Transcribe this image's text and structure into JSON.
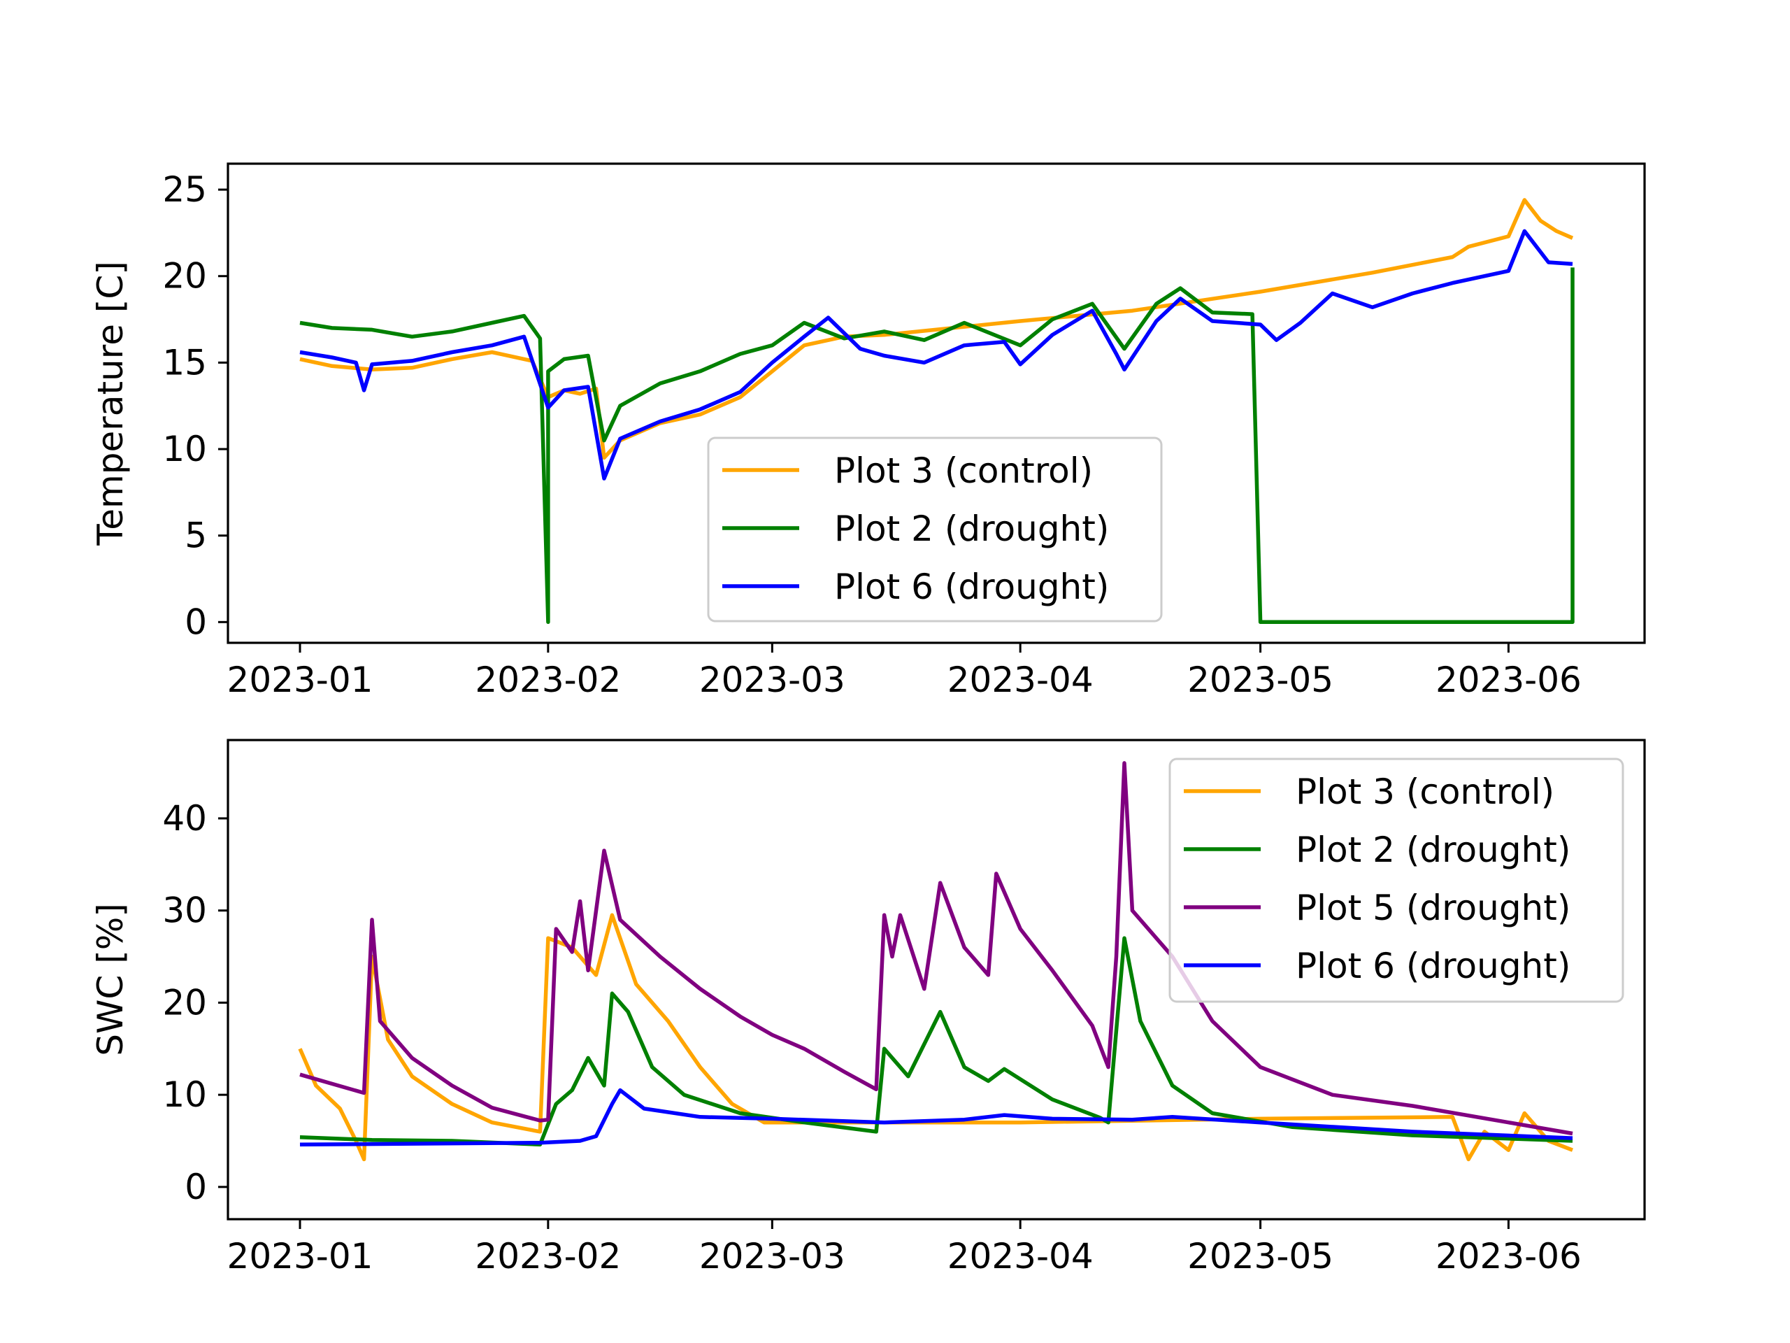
{
  "chart_data": [
    {
      "type": "line",
      "title": "",
      "xlabel": "",
      "ylabel": "Temperature [C]",
      "xlim": [
        "2022-12-23",
        "2023-06-18"
      ],
      "ylim": [
        -1.2,
        26.5
      ],
      "x_ticks": [
        "2023-01",
        "2023-02",
        "2023-03",
        "2023-04",
        "2023-05",
        "2023-06"
      ],
      "y_ticks": [
        "0",
        "5",
        "10",
        "15",
        "20",
        "25"
      ],
      "grid": false,
      "legend": "lower center",
      "series": [
        {
          "name": "Plot 3 (control)",
          "color": "#ffa500",
          "points": [
            [
              "2023-01-01",
              15.2
            ],
            [
              "2023-01-05",
              14.8
            ],
            [
              "2023-01-10",
              14.6
            ],
            [
              "2023-01-15",
              14.7
            ],
            [
              "2023-01-20",
              15.2
            ],
            [
              "2023-01-25",
              15.6
            ],
            [
              "2023-01-30",
              15.1
            ],
            [
              "2023-02-01",
              13.0
            ],
            [
              "2023-02-03",
              13.4
            ],
            [
              "2023-02-05",
              13.2
            ],
            [
              "2023-02-07",
              13.5
            ],
            [
              "2023-02-08",
              9.5
            ],
            [
              "2023-02-10",
              10.5
            ],
            [
              "2023-02-15",
              11.5
            ],
            [
              "2023-02-20",
              12.0
            ],
            [
              "2023-02-25",
              13.0
            ],
            [
              "2023-03-01",
              14.5
            ],
            [
              "2023-03-05",
              16.0
            ],
            [
              "2023-03-10",
              16.5
            ],
            [
              "2023-03-15",
              16.6
            ],
            [
              "2023-04-01",
              17.4
            ],
            [
              "2023-04-15",
              18.0
            ],
            [
              "2023-05-01",
              19.1
            ],
            [
              "2023-05-15",
              20.2
            ],
            [
              "2023-05-25",
              21.1
            ],
            [
              "2023-05-27",
              21.7
            ],
            [
              "2023-06-01",
              22.3
            ],
            [
              "2023-06-03",
              24.4
            ],
            [
              "2023-06-05",
              23.2
            ],
            [
              "2023-06-07",
              22.6
            ],
            [
              "2023-06-09",
              22.2
            ]
          ]
        },
        {
          "name": "Plot 2 (drought)",
          "color": "#008000",
          "points": [
            [
              "2023-01-01",
              17.3
            ],
            [
              "2023-01-05",
              17.0
            ],
            [
              "2023-01-10",
              16.9
            ],
            [
              "2023-01-15",
              16.5
            ],
            [
              "2023-01-20",
              16.8
            ],
            [
              "2023-01-25",
              17.3
            ],
            [
              "2023-01-29",
              17.7
            ],
            [
              "2023-01-31",
              16.4
            ],
            [
              "2023-02-01",
              0
            ],
            [
              "2023-02-01",
              14.5
            ],
            [
              "2023-02-03",
              15.2
            ],
            [
              "2023-02-06",
              15.4
            ],
            [
              "2023-02-08",
              10.5
            ],
            [
              "2023-02-10",
              12.5
            ],
            [
              "2023-02-15",
              13.8
            ],
            [
              "2023-02-20",
              14.5
            ],
            [
              "2023-02-25",
              15.5
            ],
            [
              "2023-03-01",
              16.0
            ],
            [
              "2023-03-05",
              17.3
            ],
            [
              "2023-03-10",
              16.4
            ],
            [
              "2023-03-15",
              16.8
            ],
            [
              "2023-03-20",
              16.3
            ],
            [
              "2023-03-25",
              17.3
            ],
            [
              "2023-04-01",
              16.0
            ],
            [
              "2023-04-05",
              17.5
            ],
            [
              "2023-04-10",
              18.4
            ],
            [
              "2023-04-14",
              15.8
            ],
            [
              "2023-04-18",
              18.4
            ],
            [
              "2023-04-21",
              19.3
            ],
            [
              "2023-04-25",
              17.9
            ],
            [
              "2023-04-30",
              17.8
            ],
            [
              "2023-05-01",
              0
            ],
            [
              "2023-06-09",
              0
            ],
            [
              "2023-06-09",
              20.5
            ]
          ]
        },
        {
          "name": "Plot 6 (drought)",
          "color": "#0000ff",
          "points": [
            [
              "2023-01-01",
              15.6
            ],
            [
              "2023-01-05",
              15.3
            ],
            [
              "2023-01-08",
              15.0
            ],
            [
              "2023-01-09",
              13.4
            ],
            [
              "2023-01-10",
              14.9
            ],
            [
              "2023-01-15",
              15.1
            ],
            [
              "2023-01-20",
              15.6
            ],
            [
              "2023-01-25",
              16.0
            ],
            [
              "2023-01-29",
              16.5
            ],
            [
              "2023-02-01",
              12.4
            ],
            [
              "2023-02-03",
              13.4
            ],
            [
              "2023-02-06",
              13.6
            ],
            [
              "2023-02-08",
              8.3
            ],
            [
              "2023-02-10",
              10.6
            ],
            [
              "2023-02-15",
              11.6
            ],
            [
              "2023-02-20",
              12.3
            ],
            [
              "2023-02-25",
              13.3
            ],
            [
              "2023-03-01",
              15.0
            ],
            [
              "2023-03-05",
              16.5
            ],
            [
              "2023-03-08",
              17.6
            ],
            [
              "2023-03-12",
              15.8
            ],
            [
              "2023-03-15",
              15.4
            ],
            [
              "2023-03-20",
              15.0
            ],
            [
              "2023-03-25",
              16.0
            ],
            [
              "2023-03-30",
              16.2
            ],
            [
              "2023-04-01",
              14.9
            ],
            [
              "2023-04-05",
              16.6
            ],
            [
              "2023-04-10",
              18.0
            ],
            [
              "2023-04-13",
              15.5
            ],
            [
              "2023-04-14",
              14.6
            ],
            [
              "2023-04-18",
              17.4
            ],
            [
              "2023-04-21",
              18.7
            ],
            [
              "2023-04-25",
              17.4
            ],
            [
              "2023-05-01",
              17.2
            ],
            [
              "2023-05-03",
              16.3
            ],
            [
              "2023-05-06",
              17.3
            ],
            [
              "2023-05-10",
              19.0
            ],
            [
              "2023-05-15",
              18.2
            ],
            [
              "2023-05-20",
              19.0
            ],
            [
              "2023-05-25",
              19.6
            ],
            [
              "2023-06-01",
              20.3
            ],
            [
              "2023-06-03",
              22.6
            ],
            [
              "2023-06-06",
              20.8
            ],
            [
              "2023-06-09",
              20.7
            ]
          ]
        }
      ]
    },
    {
      "type": "line",
      "title": "",
      "xlabel": "",
      "ylabel": "SWC [%]",
      "xlim": [
        "2022-12-23",
        "2023-06-18"
      ],
      "ylim": [
        -3.5,
        48.5
      ],
      "x_ticks": [
        "2023-01",
        "2023-02",
        "2023-03",
        "2023-04",
        "2023-05",
        "2023-06"
      ],
      "y_ticks": [
        "0",
        "10",
        "20",
        "30",
        "40"
      ],
      "grid": false,
      "legend": "upper right",
      "series": [
        {
          "name": "Plot 3 (control)",
          "color": "#ffa500",
          "points": [
            [
              "2023-01-01",
              15.0
            ],
            [
              "2023-01-03",
              11.0
            ],
            [
              "2023-01-06",
              8.5
            ],
            [
              "2023-01-08",
              5.0
            ],
            [
              "2023-01-09",
              3.0
            ],
            [
              "2023-01-10",
              25.0
            ],
            [
              "2023-01-12",
              16.0
            ],
            [
              "2023-01-15",
              12.0
            ],
            [
              "2023-01-20",
              9.0
            ],
            [
              "2023-01-25",
              7.0
            ],
            [
              "2023-01-31",
              6.0
            ],
            [
              "2023-02-01",
              27.0
            ],
            [
              "2023-02-04",
              26.0
            ],
            [
              "2023-02-07",
              23.0
            ],
            [
              "2023-02-09",
              29.5
            ],
            [
              "2023-02-12",
              22.0
            ],
            [
              "2023-02-16",
              18.0
            ],
            [
              "2023-02-20",
              13.0
            ],
            [
              "2023-02-24",
              9.0
            ],
            [
              "2023-02-28",
              7.0
            ],
            [
              "2023-03-05",
              7.0
            ],
            [
              "2023-04-01",
              7.0
            ],
            [
              "2023-05-01",
              7.4
            ],
            [
              "2023-05-25",
              7.6
            ],
            [
              "2023-05-27",
              3.0
            ],
            [
              "2023-05-29",
              6.0
            ],
            [
              "2023-06-01",
              4.0
            ],
            [
              "2023-06-03",
              8.0
            ],
            [
              "2023-06-06",
              5.0
            ],
            [
              "2023-06-09",
              4.0
            ]
          ]
        },
        {
          "name": "Plot 2 (drought)",
          "color": "#008000",
          "points": [
            [
              "2023-01-01",
              5.4
            ],
            [
              "2023-01-10",
              5.1
            ],
            [
              "2023-01-20",
              5.0
            ],
            [
              "2023-01-31",
              4.6
            ],
            [
              "2023-02-02",
              9.0
            ],
            [
              "2023-02-04",
              10.5
            ],
            [
              "2023-02-06",
              14.0
            ],
            [
              "2023-02-08",
              11.0
            ],
            [
              "2023-02-09",
              21.0
            ],
            [
              "2023-02-11",
              19.0
            ],
            [
              "2023-02-14",
              13.0
            ],
            [
              "2023-02-18",
              10.0
            ],
            [
              "2023-02-25",
              8.0
            ],
            [
              "2023-03-05",
              7.0
            ],
            [
              "2023-03-14",
              6.0
            ],
            [
              "2023-03-15",
              15.0
            ],
            [
              "2023-03-18",
              12.0
            ],
            [
              "2023-03-22",
              19.0
            ],
            [
              "2023-03-25",
              13.0
            ],
            [
              "2023-03-28",
              11.5
            ],
            [
              "2023-03-30",
              12.8
            ],
            [
              "2023-04-05",
              9.5
            ],
            [
              "2023-04-11",
              7.5
            ],
            [
              "2023-04-12",
              7.0
            ],
            [
              "2023-04-13",
              17.0
            ],
            [
              "2023-04-14",
              27.0
            ],
            [
              "2023-04-16",
              18.0
            ],
            [
              "2023-04-20",
              11.0
            ],
            [
              "2023-04-25",
              8.0
            ],
            [
              "2023-05-05",
              6.5
            ],
            [
              "2023-05-20",
              5.6
            ],
            [
              "2023-06-09",
              5.0
            ]
          ]
        },
        {
          "name": "Plot 5 (drought)",
          "color": "#800080",
          "points": [
            [
              "2023-01-01",
              12.2
            ],
            [
              "2023-01-05",
              11.2
            ],
            [
              "2023-01-09",
              10.2
            ],
            [
              "2023-01-10",
              29.0
            ],
            [
              "2023-01-11",
              18.0
            ],
            [
              "2023-01-15",
              14.0
            ],
            [
              "2023-01-20",
              11.0
            ],
            [
              "2023-01-25",
              8.6
            ],
            [
              "2023-01-31",
              7.2
            ],
            [
              "2023-02-01",
              7.3
            ],
            [
              "2023-02-02",
              28.0
            ],
            [
              "2023-02-04",
              25.5
            ],
            [
              "2023-02-05",
              31.0
            ],
            [
              "2023-02-06",
              23.5
            ],
            [
              "2023-02-08",
              36.5
            ],
            [
              "2023-02-10",
              29.0
            ],
            [
              "2023-02-15",
              25.0
            ],
            [
              "2023-02-20",
              21.5
            ],
            [
              "2023-02-25",
              18.5
            ],
            [
              "2023-03-01",
              16.5
            ],
            [
              "2023-03-05",
              15.0
            ],
            [
              "2023-03-10",
              12.5
            ],
            [
              "2023-03-14",
              10.6
            ],
            [
              "2023-03-15",
              29.5
            ],
            [
              "2023-03-16",
              25.0
            ],
            [
              "2023-03-17",
              29.5
            ],
            [
              "2023-03-20",
              21.5
            ],
            [
              "2023-03-22",
              33.0
            ],
            [
              "2023-03-25",
              26.0
            ],
            [
              "2023-03-28",
              23.0
            ],
            [
              "2023-03-29",
              34.0
            ],
            [
              "2023-04-01",
              28.0
            ],
            [
              "2023-04-05",
              23.5
            ],
            [
              "2023-04-10",
              17.5
            ],
            [
              "2023-04-12",
              13.0
            ],
            [
              "2023-04-13",
              25.0
            ],
            [
              "2023-04-14",
              46.0
            ],
            [
              "2023-04-15",
              30.0
            ],
            [
              "2023-04-20",
              25.0
            ],
            [
              "2023-04-25",
              18.0
            ],
            [
              "2023-05-01",
              13.0
            ],
            [
              "2023-05-10",
              10.0
            ],
            [
              "2023-05-20",
              8.8
            ],
            [
              "2023-06-01",
              7.0
            ],
            [
              "2023-06-09",
              5.8
            ]
          ]
        },
        {
          "name": "Plot 6 (drought)",
          "color": "#0000ff",
          "points": [
            [
              "2023-01-01",
              4.6
            ],
            [
              "2023-01-31",
              4.8
            ],
            [
              "2023-02-05",
              5.0
            ],
            [
              "2023-02-07",
              5.5
            ],
            [
              "2023-02-09",
              9.0
            ],
            [
              "2023-02-10",
              10.5
            ],
            [
              "2023-02-13",
              8.5
            ],
            [
              "2023-02-20",
              7.6
            ],
            [
              "2023-03-01",
              7.4
            ],
            [
              "2023-03-15",
              7.0
            ],
            [
              "2023-03-25",
              7.3
            ],
            [
              "2023-03-30",
              7.8
            ],
            [
              "2023-04-05",
              7.4
            ],
            [
              "2023-04-15",
              7.3
            ],
            [
              "2023-04-20",
              7.6
            ],
            [
              "2023-05-01",
              7.0
            ],
            [
              "2023-05-20",
              6.0
            ],
            [
              "2023-06-09",
              5.3
            ]
          ]
        }
      ]
    }
  ]
}
